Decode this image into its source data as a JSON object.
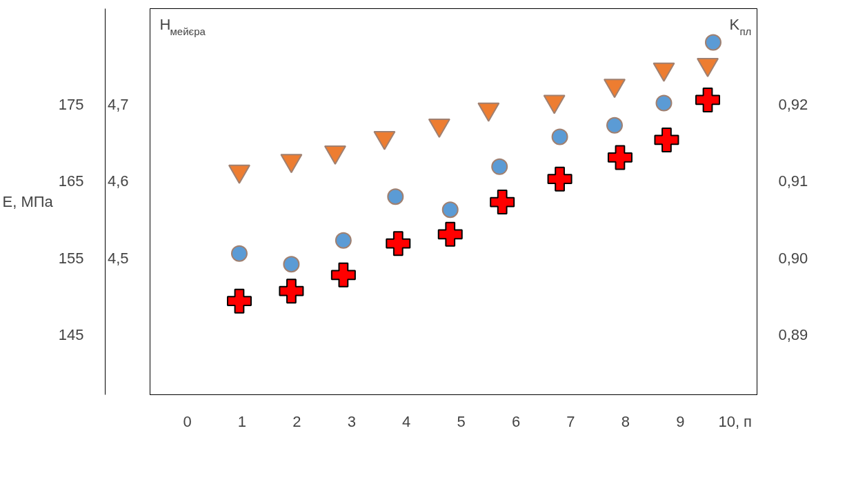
{
  "chart_data": {
    "type": "scatter",
    "ylabel": "E, МПа",
    "y2label": "H$_{мейєра}$",
    "y3label": "K$_{пл}$",
    "xlim": [
      -0.68,
      10.4
    ],
    "xticks": [
      0,
      1,
      2,
      3,
      4,
      5,
      6,
      7,
      8,
      9,
      {
        "value": 10,
        "label": "10, п"
      }
    ],
    "ylim": [
      137.2,
      187.5
    ],
    "yticks": [
      145,
      155,
      165,
      175
    ],
    "y2lim": [
      4.322,
      4.825
    ],
    "y2ticks": [
      {
        "value": 4.5,
        "label": "4,5"
      },
      {
        "value": 4.6,
        "label": "4,6"
      },
      {
        "value": 4.7,
        "label": "4,7"
      }
    ],
    "y3lim": [
      0.8822,
      0.9325
    ],
    "y3ticks": [
      {
        "value": 0.89,
        "label": "0,89"
      },
      {
        "value": 0.9,
        "label": "0,90"
      },
      {
        "value": 0.91,
        "label": "0,91"
      },
      {
        "value": 0.92,
        "label": "0,92"
      }
    ],
    "grid": false,
    "series": [
      {
        "color": "#ed7d31",
        "marker": "triangle",
        "x": [
          0.95,
          1.9,
          2.7,
          3.6,
          4.6,
          5.5,
          6.7,
          7.8,
          8.7,
          9.5
        ],
        "values": [
          166.3,
          167.7,
          168.8,
          170.7,
          172.3,
          174.4,
          175.4,
          177.5,
          179.6,
          180.2
        ]
      },
      {
        "color": "#5b9bd5",
        "marker": "circle",
        "x": [
          0.95,
          1.9,
          2.85,
          3.8,
          4.8,
          5.7,
          6.8,
          7.8,
          8.7,
          9.6
        ],
        "values": [
          155.6,
          154.2,
          157.3,
          163.0,
          161.3,
          166.9,
          170.8,
          172.3,
          175.2,
          183.1
        ]
      },
      {
        "color": "#ff0000",
        "marker": "cross",
        "x": [
          0.95,
          1.9,
          2.85,
          3.85,
          4.8,
          5.75,
          6.8,
          7.9,
          8.75,
          9.5
        ],
        "values": [
          149.4,
          150.7,
          152.8,
          156.9,
          158.1,
          162.3,
          165.3,
          168.1,
          170.4,
          175.6
        ]
      }
    ]
  }
}
